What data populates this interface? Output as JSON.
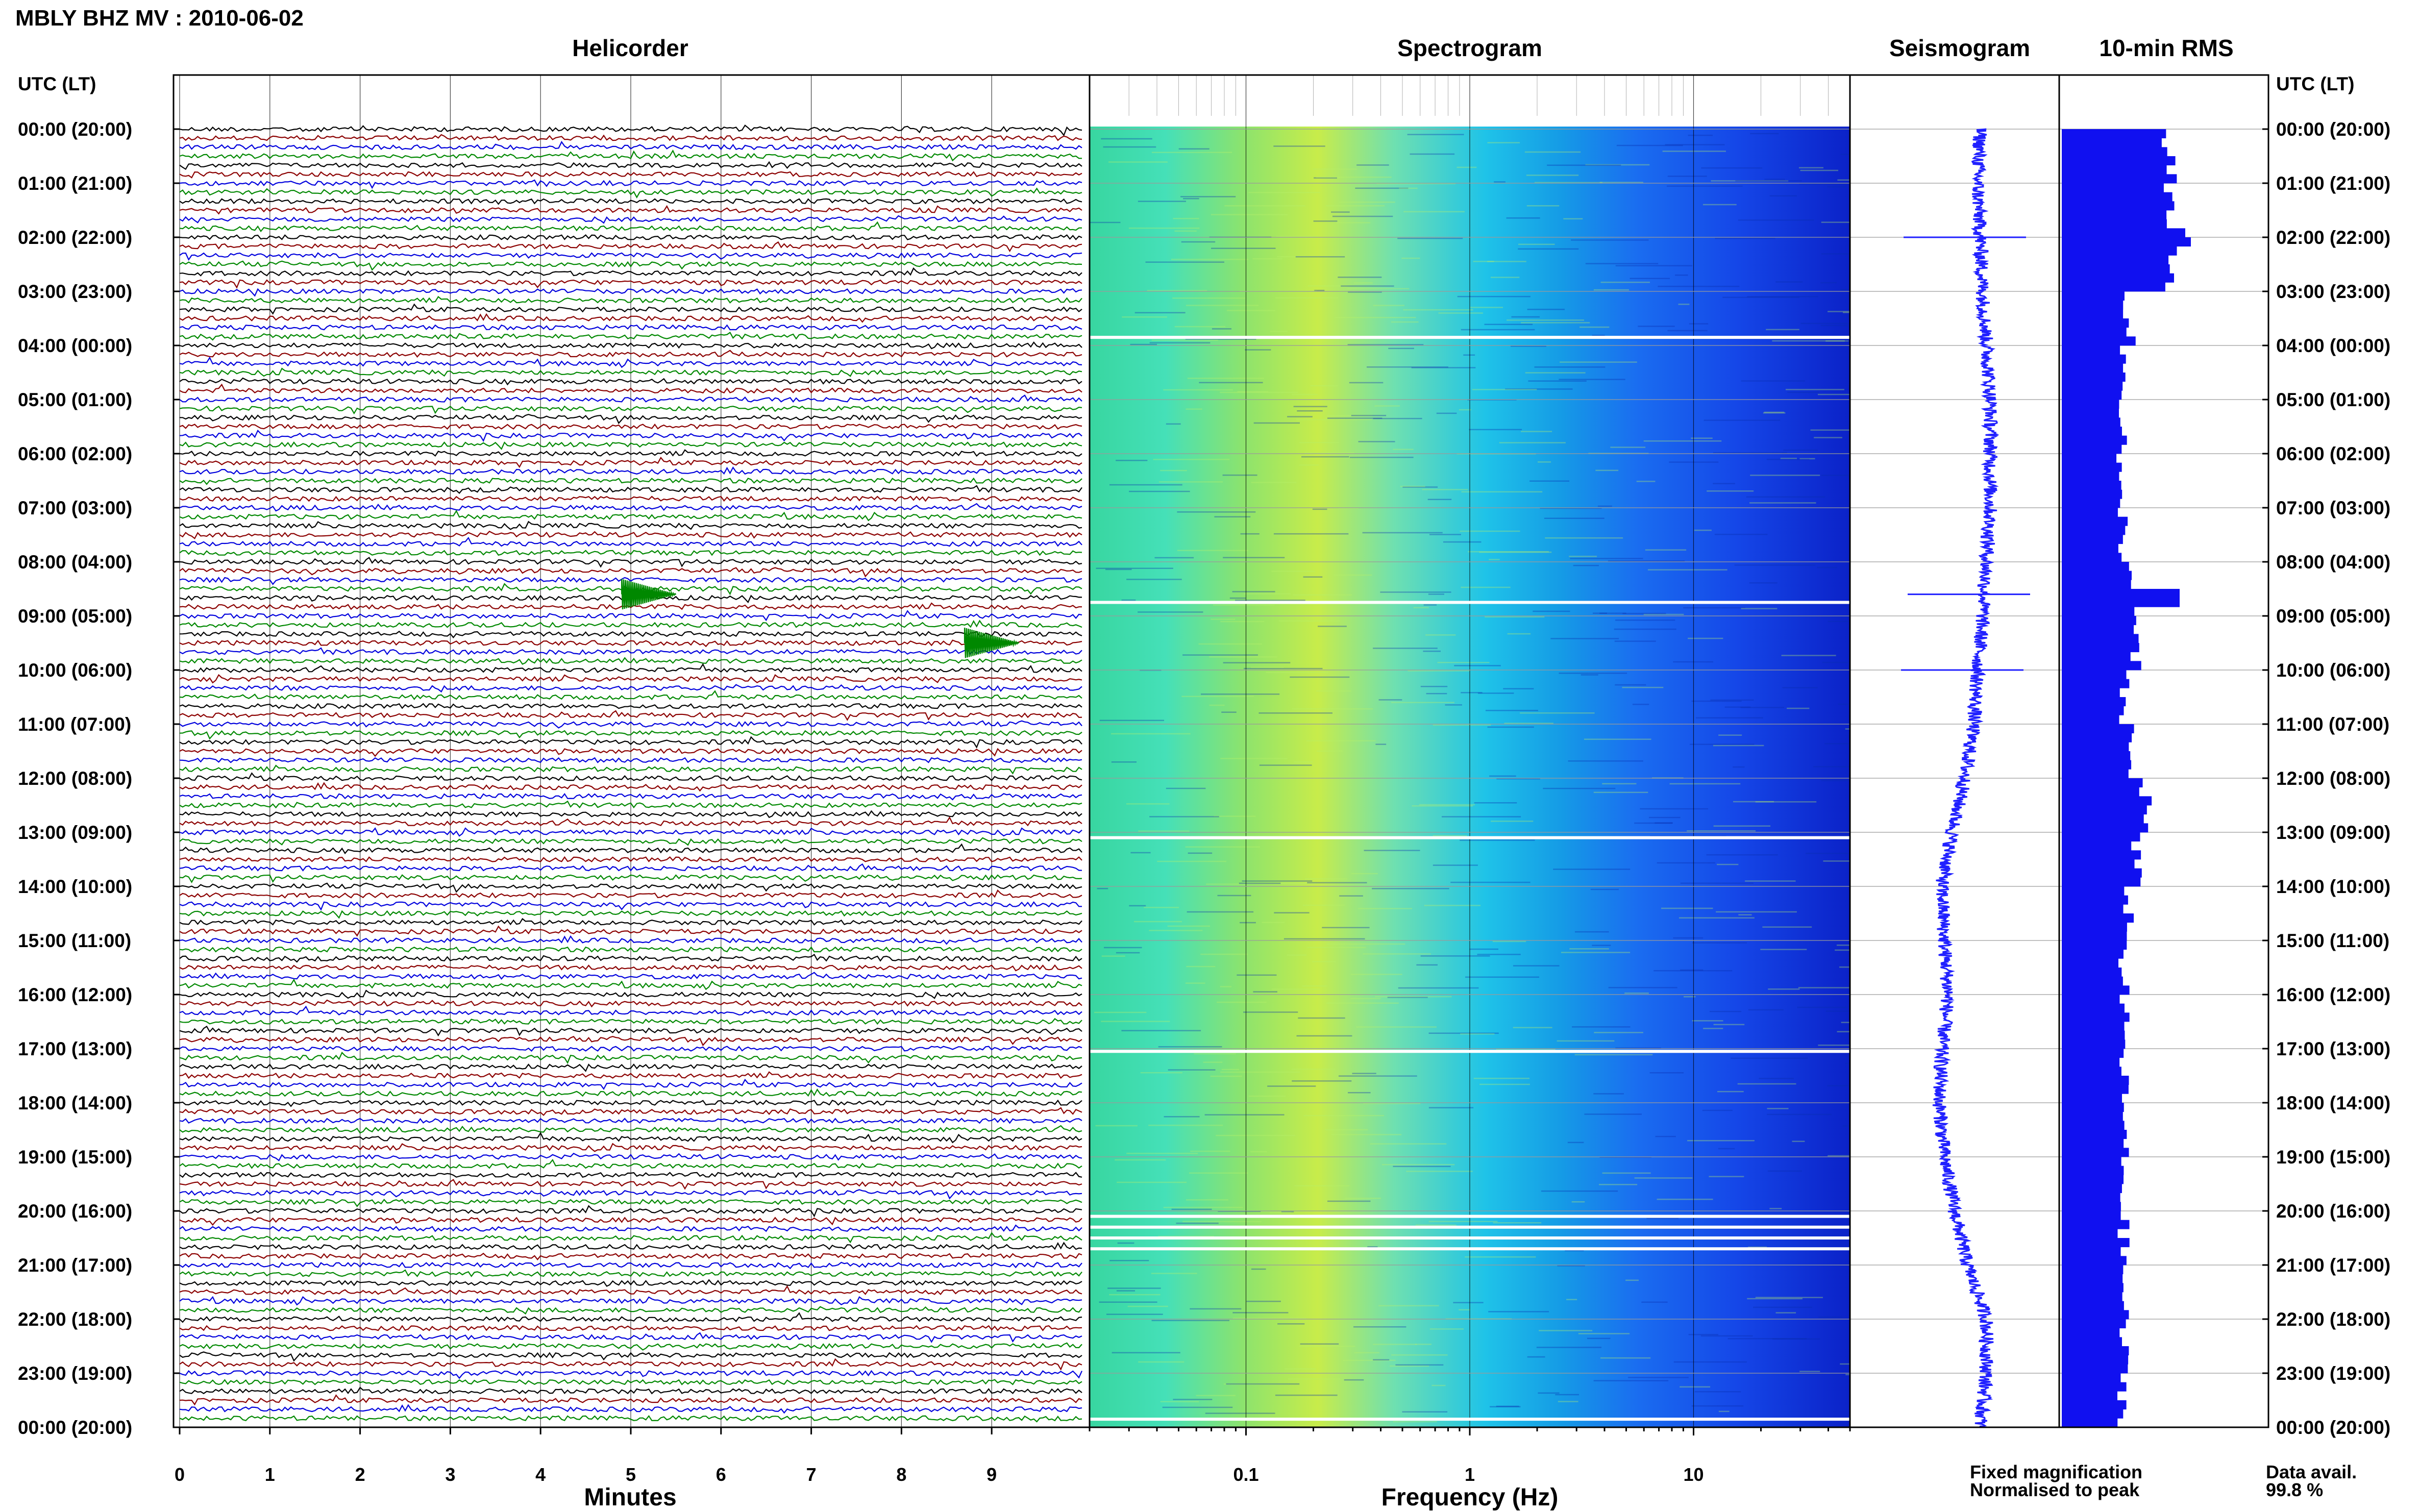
{
  "header": {
    "title": "MBLY BHZ MV : 2010-06-02"
  },
  "panels": {
    "helicorder": "Helicorder",
    "spectrogram": "Spectrogram",
    "seismogram": "Seismogram",
    "rms": "10-min RMS"
  },
  "time_axis": {
    "label_left": "UTC (LT)",
    "label_right": "UTC (LT)",
    "labels": [
      "00:00 (20:00)",
      "01:00 (21:00)",
      "02:00 (22:00)",
      "03:00 (23:00)",
      "04:00 (00:00)",
      "05:00 (01:00)",
      "06:00 (02:00)",
      "07:00 (03:00)",
      "08:00 (04:00)",
      "09:00 (05:00)",
      "10:00 (06:00)",
      "11:00 (07:00)",
      "12:00 (08:00)",
      "13:00 (09:00)",
      "14:00 (10:00)",
      "15:00 (11:00)",
      "16:00 (12:00)",
      "17:00 (13:00)",
      "18:00 (14:00)",
      "19:00 (15:00)",
      "20:00 (16:00)",
      "21:00 (17:00)",
      "22:00 (18:00)",
      "23:00 (19:00)",
      "00:00 (20:00)"
    ]
  },
  "footer": {
    "fixed_magnification": "Fixed magnification",
    "normalised_to_peak": "Normalised to peak",
    "data_avail_label": "Data avail.",
    "data_avail_value": "99.8 %"
  },
  "colors": {
    "trace_cycle": [
      "#000000",
      "#8b0000",
      "#0000dd",
      "#008800"
    ],
    "fixed_magnification": "#1a1aff",
    "normalised_to_peak": "#e00000",
    "seismogram": "#2020ff",
    "rms": "#1010f0"
  },
  "chart_data": [
    {
      "type": "line",
      "panel": "helicorder",
      "xlabel": "Minutes",
      "xlim": [
        0,
        10
      ],
      "xticks": [
        "0",
        "1",
        "2",
        "3",
        "4",
        "5",
        "6",
        "7",
        "8",
        "9"
      ],
      "hours": 24,
      "lines_per_hour": 6,
      "notable_events": [
        {
          "hour_fraction": 8.6,
          "minute": 4.9,
          "description": ""
        },
        {
          "hour_fraction": 9.5,
          "minute": 8.7,
          "description": ""
        }
      ]
    },
    {
      "type": "heatmap",
      "panel": "spectrogram",
      "xlabel": "Frequency (Hz)",
      "xscale": "log",
      "xlim": [
        0.02,
        50
      ],
      "xticks": [
        "0.1",
        "1",
        "10"
      ],
      "data_gaps_hours": [
        3.85,
        8.75,
        13.1,
        17.05,
        20.1,
        20.3,
        20.5,
        20.7,
        23.85
      ]
    },
    {
      "type": "line",
      "panel": "seismogram",
      "drift_profile": [
        0.0,
        -0.02,
        0.0,
        0.02,
        0.05,
        0.08,
        0.08,
        0.08,
        0.05,
        0.02,
        -0.02,
        -0.05,
        -0.12,
        -0.22,
        -0.3,
        -0.28,
        -0.25,
        -0.3,
        -0.32,
        -0.28,
        -0.2,
        -0.1,
        0.05,
        0.05,
        0.0
      ],
      "spikes_hours": [
        2.0,
        8.6,
        10.0
      ]
    },
    {
      "type": "bar",
      "panel": "rms",
      "orientation": "horizontal",
      "bins_per_hour": 6,
      "hourly_relative_rms": [
        0.95,
        1.0,
        0.95,
        0.6,
        0.55,
        0.55,
        0.5,
        0.55,
        0.6,
        0.65,
        0.55,
        0.6,
        0.75,
        0.65,
        0.6,
        0.55,
        0.55,
        0.55,
        0.55,
        0.55,
        0.55,
        0.55,
        0.55,
        0.55
      ],
      "peaks": [
        {
          "hour_fraction": 2.0,
          "relative": 1.15
        },
        {
          "hour_fraction": 8.6,
          "relative": 1.05
        }
      ]
    }
  ]
}
